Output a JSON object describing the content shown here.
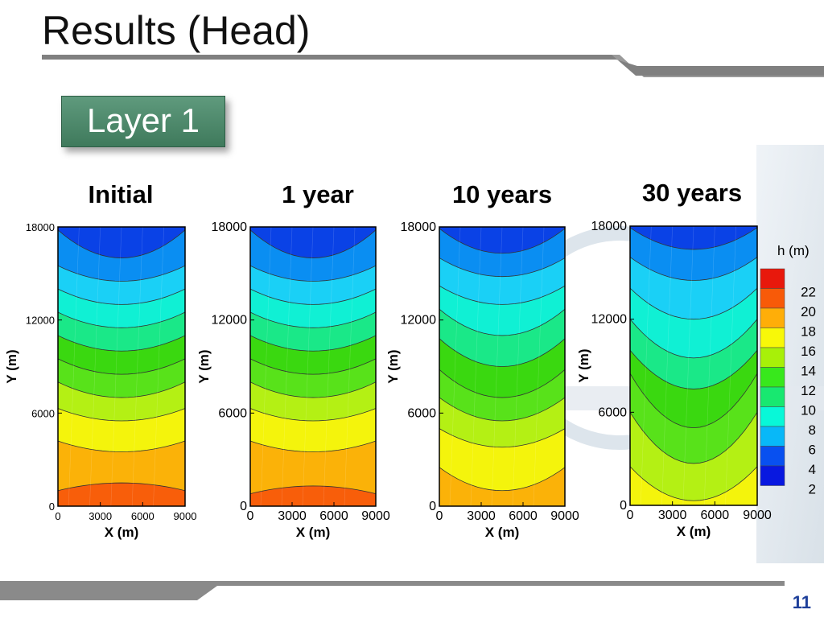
{
  "slide": {
    "title": "Results (Head)",
    "layer_label": "Layer 1",
    "slide_number": "11"
  },
  "chart_data": [
    {
      "type": "heatmap",
      "title": "Initial",
      "xlabel": "X (m)",
      "ylabel": "Y (m)",
      "xlim": [
        0,
        9000
      ],
      "ylim": [
        0,
        18000
      ],
      "xticks": [
        0,
        3000,
        6000,
        9000
      ],
      "yticks": [
        0,
        6000,
        12000,
        18000
      ],
      "contour_levels_top_to_bottom": [
        2,
        4,
        6,
        8,
        10,
        12,
        14,
        16,
        18,
        20,
        22
      ],
      "bands_top_to_bottom": [
        3,
        5,
        7,
        9,
        11,
        13,
        15,
        17,
        19,
        21,
        23
      ],
      "band_boundary_y_center": [
        16000,
        14500,
        13000,
        11500,
        10000,
        8500,
        7000,
        5500,
        3500,
        1500
      ],
      "band_boundary_y_edge": [
        17800,
        15500,
        14000,
        12500,
        11000,
        9500,
        8000,
        6300,
        4200,
        1000
      ],
      "color_scale": "h (m)"
    },
    {
      "type": "heatmap",
      "title": "1 year",
      "xlabel": "X (m)",
      "ylabel": "Y (m)",
      "xlim": [
        0,
        9000
      ],
      "ylim": [
        0,
        18000
      ],
      "xticks": [
        0,
        3000,
        6000,
        9000
      ],
      "yticks": [
        0,
        6000,
        12000,
        18000
      ],
      "bands_top_to_bottom": [
        3,
        5,
        7,
        9,
        11,
        13,
        15,
        17,
        19,
        21,
        23
      ],
      "band_boundary_y_center": [
        16000,
        14500,
        13000,
        11500,
        10000,
        8500,
        7000,
        5500,
        3500,
        1300
      ],
      "band_boundary_y_edge": [
        17800,
        15500,
        14000,
        12500,
        11000,
        9500,
        8000,
        6300,
        4200,
        800
      ],
      "color_scale": "h (m)"
    },
    {
      "type": "heatmap",
      "title": "10 years",
      "xlabel": "X (m)",
      "ylabel": "Y (m)",
      "xlim": [
        0,
        9000
      ],
      "ylim": [
        0,
        18000
      ],
      "xticks": [
        0,
        3000,
        6000,
        9000
      ],
      "yticks": [
        0,
        6000,
        12000,
        18000
      ],
      "bands_top_to_bottom": [
        3,
        5,
        7,
        9,
        11,
        13,
        15,
        17,
        19,
        21
      ],
      "band_boundary_y_center": [
        16300,
        14800,
        13000,
        11000,
        9000,
        7000,
        5500,
        3800,
        1000
      ],
      "band_boundary_y_edge": [
        17900,
        16000,
        14200,
        12700,
        10800,
        8800,
        7000,
        5000,
        2500
      ],
      "color_scale": "h (m)"
    },
    {
      "type": "heatmap",
      "title": "30 years",
      "xlabel": "X (m)",
      "ylabel": "Y (m)",
      "xlim": [
        0,
        9000
      ],
      "ylim": [
        0,
        18000
      ],
      "xticks": [
        0,
        3000,
        6000,
        9000
      ],
      "yticks": [
        0,
        6000,
        12000,
        18000
      ],
      "bands_top_to_bottom": [
        3,
        5,
        7,
        9,
        11,
        13,
        15,
        17,
        19
      ],
      "band_boundary_y_center": [
        16500,
        14500,
        12000,
        9500,
        7500,
        5000,
        2700,
        300
      ],
      "band_boundary_y_edge": [
        17900,
        16000,
        14000,
        12000,
        10000,
        8500,
        6000,
        2500
      ],
      "color_scale": "h (m)"
    }
  ],
  "legend": {
    "title": "h (m)",
    "levels": [
      22,
      20,
      18,
      16,
      14,
      12,
      10,
      8,
      6,
      4,
      2
    ],
    "colors": [
      "#e8180c",
      "#f85a08",
      "#ffae08",
      "#f8f808",
      "#a8f008",
      "#38e81c",
      "#18e870",
      "#08f8d8",
      "#08b8f8",
      "#0850f0",
      "#0818e0"
    ]
  },
  "colors": {
    "band_colors": {
      "3": "#0a42e6",
      "5": "#0a8ef2",
      "7": "#1ad0f6",
      "9": "#10f0d4",
      "11": "#1ae888",
      "13": "#3ad810",
      "15": "#58e21a",
      "17": "#b4f014",
      "19": "#f4f40c",
      "21": "#fbb208",
      "23": "#f85e0a"
    }
  }
}
